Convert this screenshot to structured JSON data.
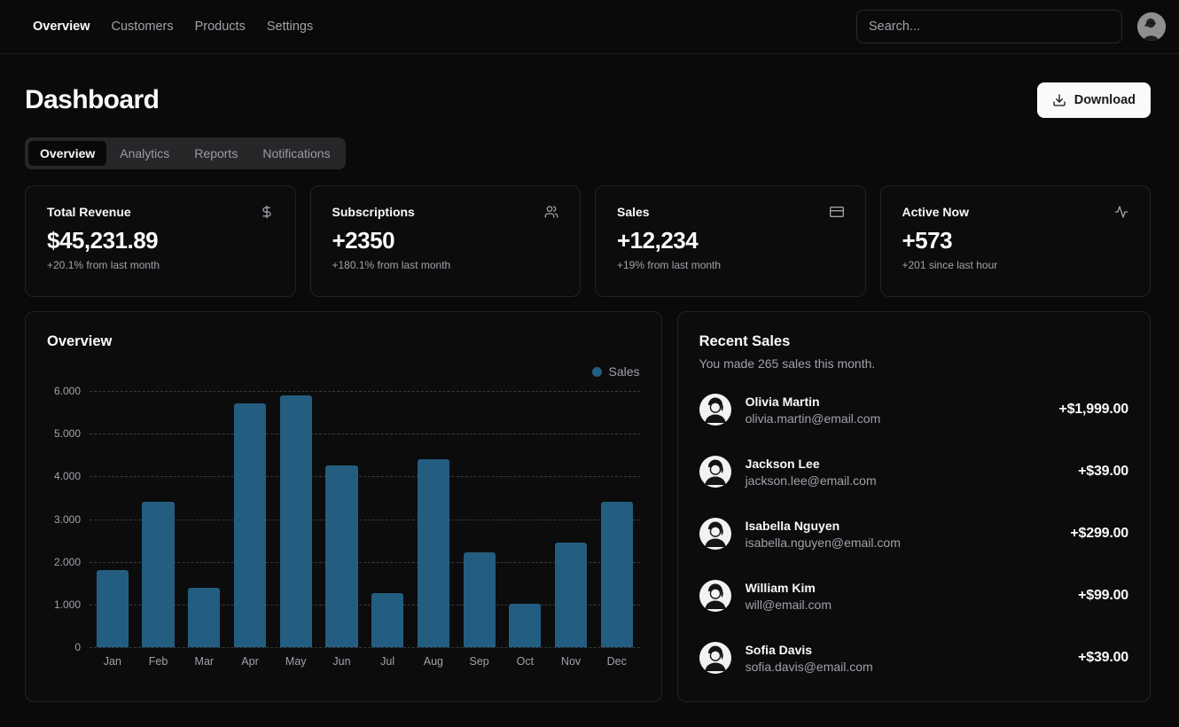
{
  "nav": {
    "items": [
      "Overview",
      "Customers",
      "Products",
      "Settings"
    ],
    "search_placeholder": "Search..."
  },
  "header": {
    "title": "Dashboard",
    "download_label": "Download"
  },
  "tabs": [
    {
      "label": "Overview",
      "active": true
    },
    {
      "label": "Analytics",
      "active": false
    },
    {
      "label": "Reports",
      "active": false
    },
    {
      "label": "Notifications",
      "active": false
    }
  ],
  "stats": [
    {
      "title": "Total Revenue",
      "value": "$45,231.89",
      "change": "+20.1% from last month",
      "icon": "dollar-sign"
    },
    {
      "title": "Subscriptions",
      "value": "+2350",
      "change": "+180.1% from last month",
      "icon": "users"
    },
    {
      "title": "Sales",
      "value": "+12,234",
      "change": "+19% from last month",
      "icon": "credit-card"
    },
    {
      "title": "Active Now",
      "value": "+573",
      "change": "+201 since last hour",
      "icon": "activity"
    }
  ],
  "chart_card": {
    "title": "Overview",
    "legend_label": "Sales"
  },
  "chart_data": {
    "type": "bar",
    "title": "Overview",
    "categories": [
      "Jan",
      "Feb",
      "Mar",
      "Apr",
      "May",
      "Jun",
      "Jul",
      "Aug",
      "Sep",
      "Oct",
      "Nov",
      "Dec"
    ],
    "series": [
      {
        "name": "Sales",
        "values": [
          1800,
          3400,
          1400,
          5700,
          5900,
          4250,
          1270,
          4400,
          2230,
          1020,
          2450,
          3400
        ]
      }
    ],
    "ylim": [
      0,
      6000
    ],
    "ytick_labels": [
      "6.000",
      "5.000",
      "4.000",
      "3.000",
      "2.000",
      "1.000",
      "0"
    ],
    "grid": "horizontal-dashed",
    "legend_position": "top-right",
    "bar_color": "#235e80"
  },
  "recent_sales": {
    "title": "Recent Sales",
    "subtitle": "You made 265 sales this month.",
    "items": [
      {
        "name": "Olivia Martin",
        "email": "olivia.martin@email.com",
        "amount": "+$1,999.00"
      },
      {
        "name": "Jackson Lee",
        "email": "jackson.lee@email.com",
        "amount": "+$39.00"
      },
      {
        "name": "Isabella Nguyen",
        "email": "isabella.nguyen@email.com",
        "amount": "+$299.00"
      },
      {
        "name": "William Kim",
        "email": "will@email.com",
        "amount": "+$99.00"
      },
      {
        "name": "Sofia Davis",
        "email": "sofia.davis@email.com",
        "amount": "+$39.00"
      }
    ]
  },
  "colors": {
    "background": "#0a0a0a",
    "card_border": "#232327",
    "muted_text": "#a1a1aa",
    "bar": "#235e80",
    "button_bg": "#fafafa",
    "button_text": "#18181b"
  }
}
